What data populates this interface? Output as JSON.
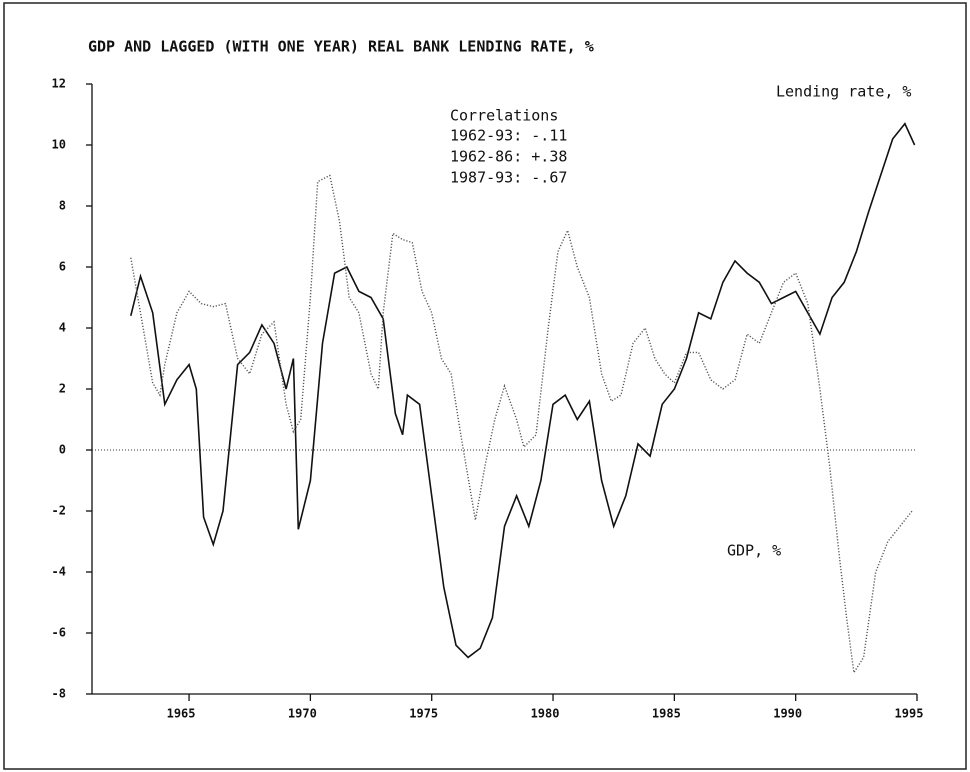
{
  "chart_data": {
    "type": "line",
    "title": "GDP AND LAGGED (WITH ONE YEAR) REAL BANK LENDING RATE, %",
    "annotations": [
      "Lending rate, %",
      "GDP, %",
      "Correlations",
      "1962-93: -.11",
      "1962-86: +.38",
      "1987-93: -.67"
    ],
    "series": [
      {
        "name": "Lending rate, %",
        "color": "#111111",
        "style": "solid",
        "x": [
          1962.6,
          1963,
          1963.5,
          1964,
          1964.5,
          1965,
          1965.3,
          1965.6,
          1966,
          1966.4,
          1967,
          1967.5,
          1968,
          1968.5,
          1969,
          1969.3,
          1969.5,
          1970,
          1970.5,
          1971,
          1971.5,
          1972,
          1972.5,
          1973,
          1973.5,
          1973.8,
          1974,
          1974.5,
          1975,
          1975.5,
          1976,
          1976.5,
          1977,
          1977.5,
          1978,
          1978.5,
          1979,
          1979.5,
          1980,
          1980.5,
          1981,
          1981.5,
          1982,
          1982.5,
          1983,
          1983.5,
          1984,
          1984.5,
          1985,
          1985.5,
          1986,
          1986.5,
          1987,
          1987.5,
          1988,
          1988.5,
          1989,
          1989.5,
          1990,
          1990.5,
          1991,
          1991.5,
          1992,
          1992.5,
          1993,
          1993.5,
          1994,
          1994.5,
          1994.9
        ],
        "values": [
          4.4,
          5.7,
          4.5,
          1.5,
          2.3,
          2.8,
          2.0,
          -2.2,
          -3.1,
          -2.0,
          2.8,
          3.2,
          4.1,
          3.5,
          2.0,
          3.0,
          -2.6,
          -1.0,
          3.5,
          5.8,
          6.0,
          5.2,
          5.0,
          4.3,
          1.2,
          0.5,
          1.8,
          1.5,
          -1.5,
          -4.5,
          -6.4,
          -6.8,
          -6.5,
          -5.5,
          -2.5,
          -1.5,
          -2.5,
          -1.0,
          1.5,
          1.8,
          1.0,
          1.6,
          -1.0,
          -2.5,
          -1.5,
          0.2,
          -0.2,
          1.5,
          2.0,
          3.0,
          4.5,
          4.3,
          5.5,
          6.2,
          5.8,
          5.5,
          4.8,
          5.0,
          5.2,
          4.5,
          3.8,
          5.0,
          5.5,
          6.5,
          7.8,
          9.0,
          10.2,
          10.7,
          10.0
        ]
      },
      {
        "name": "GDP, %",
        "color": "#555555",
        "style": "dotted",
        "x": [
          1962.6,
          1963,
          1963.5,
          1963.8,
          1964,
          1964.5,
          1965,
          1965.5,
          1966,
          1966.5,
          1967,
          1967.5,
          1968,
          1968.5,
          1969,
          1969.3,
          1969.6,
          1970,
          1970.3,
          1970.8,
          1971.2,
          1971.6,
          1972,
          1972.5,
          1972.8,
          1973,
          1973.4,
          1973.8,
          1974.2,
          1974.6,
          1975,
          1975.4,
          1975.8,
          1976.2,
          1976.8,
          1977.2,
          1977.6,
          1978,
          1978.5,
          1978.8,
          1979.3,
          1979.8,
          1980.2,
          1980.6,
          1981,
          1981.5,
          1982,
          1982.4,
          1982.8,
          1983.3,
          1983.8,
          1984.2,
          1984.6,
          1985,
          1985.5,
          1986,
          1986.5,
          1987,
          1987.5,
          1988,
          1988.5,
          1989,
          1989.5,
          1990,
          1990.5,
          1991,
          1991.4,
          1991.8,
          1992.1,
          1992.4,
          1992.8,
          1993.3,
          1993.8,
          1994.3,
          1994.8
        ],
        "values": [
          6.3,
          4.5,
          2.2,
          1.8,
          2.8,
          4.5,
          5.2,
          4.8,
          4.7,
          4.8,
          3.0,
          2.5,
          3.8,
          4.2,
          1.5,
          0.6,
          1.0,
          5.0,
          8.8,
          9.0,
          7.5,
          5.0,
          4.5,
          2.5,
          2.0,
          4.5,
          7.1,
          6.9,
          6.8,
          5.2,
          4.5,
          3.0,
          2.5,
          0.5,
          -2.3,
          -0.5,
          1.0,
          2.1,
          1.0,
          0.1,
          0.5,
          4.0,
          6.5,
          7.2,
          6.0,
          5.0,
          2.5,
          1.6,
          1.8,
          3.5,
          4.0,
          3.0,
          2.5,
          2.2,
          3.2,
          3.2,
          2.3,
          2.0,
          2.3,
          3.8,
          3.5,
          4.5,
          5.5,
          5.8,
          4.8,
          2.0,
          -0.5,
          -3.5,
          -5.5,
          -7.3,
          -6.8,
          -4.0,
          -3.0,
          -2.5,
          -2.0
        ]
      }
    ],
    "xlim": [
      1961,
      1995
    ],
    "xticks": [
      1965,
      1970,
      1975,
      1980,
      1985,
      1990,
      1995
    ],
    "ylim": [
      -8,
      12
    ],
    "yticks": [
      -8,
      -6,
      -4,
      -2,
      0,
      2,
      4,
      6,
      8,
      10,
      12
    ],
    "zero_line": true
  }
}
